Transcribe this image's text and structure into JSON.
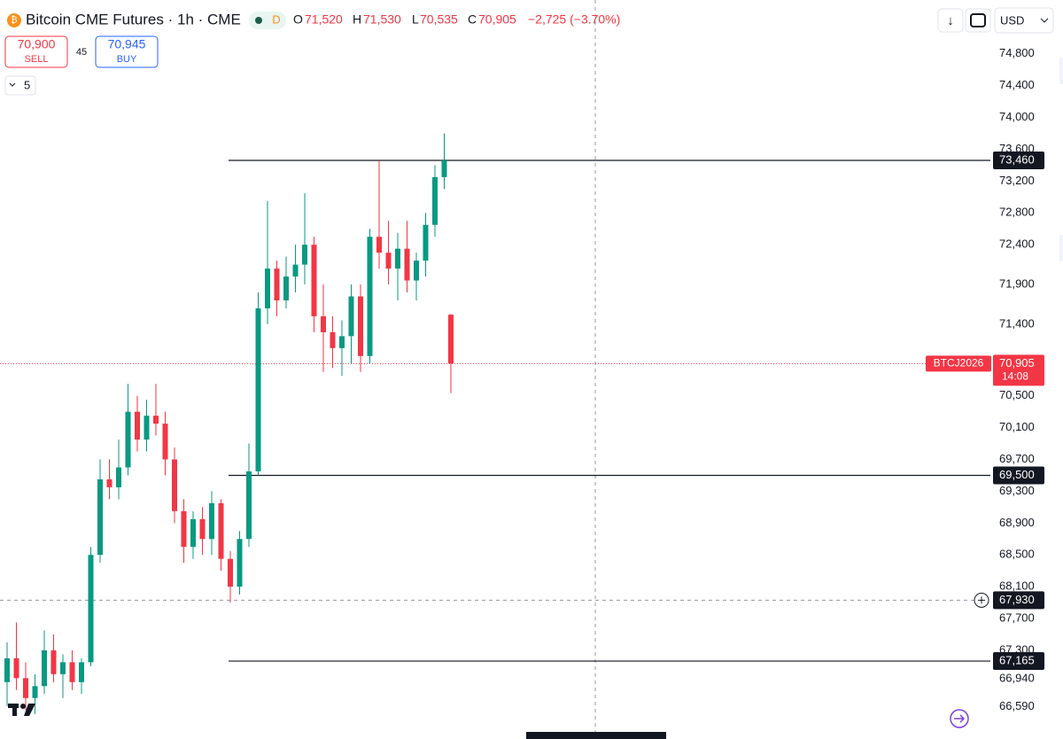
{
  "header": {
    "title": "Bitcoin CME Futures · 1h · CME",
    "badge": "D",
    "ohlc": [
      {
        "key": "O",
        "value": "71,520"
      },
      {
        "key": "H",
        "value": "71,530"
      },
      {
        "key": "L",
        "value": "70,535"
      },
      {
        "key": "C",
        "value": "70,905"
      }
    ],
    "change": "−2,725 (−3.70%)",
    "arrow": "↓",
    "currency": "USD"
  },
  "trade": {
    "sell_price": "70,900",
    "sell_label": "SELL",
    "spread": "45",
    "buy_price": "70,945",
    "buy_label": "BUY",
    "indicators": "5"
  },
  "chart_data": {
    "type": "candlestick",
    "up_color": "#089981",
    "down_color": "#f23645",
    "open": [
      66900,
      67200,
      66950,
      66700,
      66850,
      67300,
      67000,
      67150,
      66900,
      67150,
      68500,
      69450,
      69350,
      69600,
      70300,
      69950,
      70250,
      70150,
      69700,
      69050,
      68600,
      68950,
      68700,
      69150,
      68450,
      68100,
      68700,
      69550,
      71600,
      72100,
      71700,
      72000,
      72150,
      72400,
      71500,
      71300,
      71100,
      71250,
      71750,
      71000,
      72500,
      72300,
      72100,
      72350,
      71950,
      72200,
      72650,
      73250,
      71520
    ],
    "high": [
      67400,
      67650,
      67150,
      67000,
      67550,
      67500,
      67250,
      67300,
      67200,
      68600,
      69700,
      69700,
      69950,
      70650,
      70500,
      70450,
      70650,
      70300,
      69850,
      69200,
      69050,
      69100,
      69300,
      69200,
      68550,
      68800,
      69900,
      71800,
      72950,
      72200,
      72250,
      72400,
      73050,
      72500,
      71900,
      71500,
      71450,
      71900,
      71900,
      72600,
      73450,
      72700,
      72550,
      72700,
      72300,
      72800,
      73400,
      73800,
      71530
    ],
    "low": [
      66600,
      66800,
      66550,
      66500,
      66750,
      66900,
      66700,
      66800,
      66750,
      67100,
      68400,
      69200,
      69200,
      69500,
      69800,
      69800,
      70000,
      69500,
      68900,
      68400,
      68450,
      68500,
      68500,
      68300,
      67900,
      68000,
      68600,
      69500,
      71400,
      71500,
      71600,
      71800,
      71900,
      71300,
      70800,
      70850,
      70750,
      70900,
      70800,
      70900,
      72100,
      71900,
      71700,
      71800,
      71700,
      72000,
      72500,
      73100,
      70535
    ],
    "close": [
      67200,
      66950,
      66700,
      66850,
      67300,
      67000,
      67150,
      66900,
      67150,
      68500,
      69450,
      69350,
      69600,
      70300,
      69950,
      70250,
      70150,
      69700,
      69050,
      68600,
      68950,
      68700,
      69150,
      68450,
      68100,
      68700,
      69550,
      71600,
      72100,
      71700,
      72000,
      72150,
      72400,
      71500,
      71300,
      71100,
      71250,
      71750,
      71000,
      72500,
      72300,
      72100,
      72350,
      71950,
      72200,
      72650,
      73250,
      73460,
      70905
    ],
    "ylim": [
      66185,
      75477
    ],
    "yticks": [
      {
        "value": 74800,
        "label": "74,800"
      },
      {
        "value": 74400,
        "label": "74,400"
      },
      {
        "value": 74000,
        "label": "74,000"
      },
      {
        "value": 73600,
        "label": "73,600"
      },
      {
        "value": 73200,
        "label": "73,200"
      },
      {
        "value": 72800,
        "label": "72,800"
      },
      {
        "value": 72400,
        "label": "72,400"
      },
      {
        "value": 71900,
        "label": "71,900"
      },
      {
        "value": 71400,
        "label": "71,400"
      },
      {
        "value": 70500,
        "label": "70,500"
      },
      {
        "value": 70100,
        "label": "70,100"
      },
      {
        "value": 69700,
        "label": "69,700"
      },
      {
        "value": 69300,
        "label": "69,300"
      },
      {
        "value": 68900,
        "label": "68,900"
      },
      {
        "value": 68500,
        "label": "68,500"
      },
      {
        "value": 68100,
        "label": "68,100"
      },
      {
        "value": 67700,
        "label": "67,700"
      },
      {
        "value": 67300,
        "label": "67,300"
      },
      {
        "value": 66940,
        "label": "66,940"
      },
      {
        "value": 66590,
        "label": "66,590"
      }
    ],
    "hlines": [
      {
        "value": 73460,
        "label": "73,460"
      },
      {
        "value": 69500,
        "label": "69,500"
      },
      {
        "value": 67165,
        "label": "67,165"
      }
    ],
    "last_price": {
      "value": 70905,
      "label": "70,905",
      "symbol": "BTCJ2026",
      "countdown": "14:08"
    },
    "crosshair": {
      "value": 67930,
      "label": "67,930"
    }
  }
}
